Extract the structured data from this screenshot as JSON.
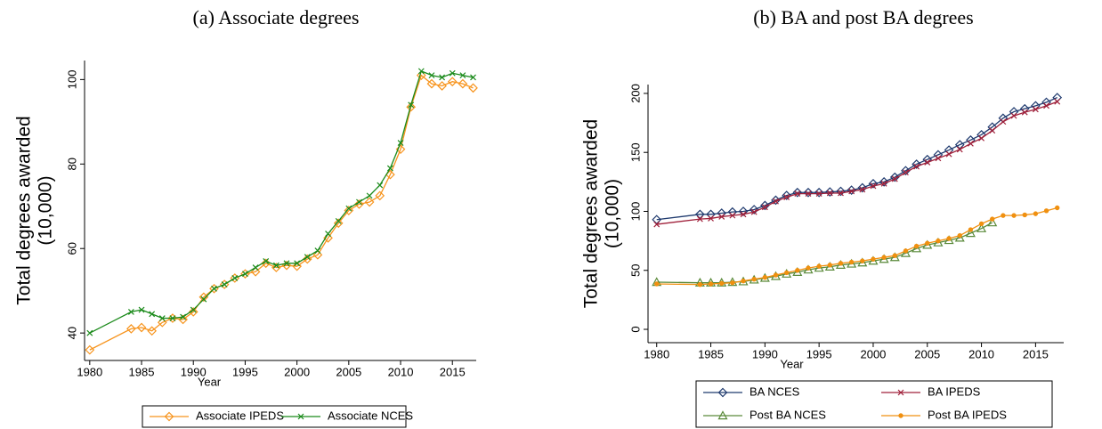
{
  "chart_data": [
    {
      "type": "line",
      "title": "(a) Associate degrees",
      "xlabel": "Year",
      "ylabel": [
        "Total degrees awarded",
        "(10,000)"
      ],
      "x": [
        1980,
        1984,
        1985,
        1986,
        1987,
        1988,
        1989,
        1990,
        1991,
        1992,
        1993,
        1994,
        1995,
        1996,
        1997,
        1998,
        1999,
        2000,
        2001,
        2002,
        2003,
        2004,
        2005,
        2006,
        2007,
        2008,
        2009,
        2010,
        2011,
        2012,
        2013,
        2014,
        2015,
        2016,
        2017
      ],
      "series": [
        {
          "name": "Associate IPEDS",
          "color": "#f7941d",
          "marker": "diamond",
          "values": [
            36,
            41,
            41.3,
            40.5,
            42.5,
            43.5,
            43.2,
            45,
            48.5,
            50.5,
            51.5,
            53,
            54,
            54.5,
            56.5,
            55.5,
            56,
            55.8,
            57.5,
            58.5,
            62.5,
            66,
            69,
            70.5,
            71,
            72.5,
            77.5,
            83.5,
            93.5,
            101,
            99,
            98.5,
            99.5,
            99,
            98
          ]
        },
        {
          "name": "Associate NCES",
          "color": "#1a8a1a",
          "marker": "x",
          "values": [
            40,
            45,
            45.5,
            44.5,
            43.5,
            43.5,
            43.8,
            45.5,
            48,
            50.5,
            51.5,
            53,
            54,
            55.5,
            57,
            56,
            56.5,
            56.5,
            58,
            59.5,
            63.5,
            66.5,
            69.5,
            71,
            72.5,
            75,
            79,
            85,
            94,
            102,
            101,
            100.5,
            101.5,
            101,
            100.5
          ]
        }
      ],
      "xlim": [
        1979.5,
        2017.3
      ],
      "xticks": [
        1980,
        1985,
        1990,
        1995,
        2000,
        2005,
        2010,
        2015
      ],
      "ylim": [
        33.5,
        104.5
      ],
      "yticks": [
        40,
        60,
        80,
        100
      ],
      "grid": false,
      "legend": "bottom",
      "legend_columns": 2
    },
    {
      "type": "line",
      "title": "(b) BA and post BA degrees",
      "xlabel": "Year",
      "ylabel": [
        "Total degrees awarded",
        "(10,000)"
      ],
      "x": [
        1980,
        1984,
        1985,
        1986,
        1987,
        1988,
        1989,
        1990,
        1991,
        1992,
        1993,
        1994,
        1995,
        1996,
        1997,
        1998,
        1999,
        2000,
        2001,
        2002,
        2003,
        2004,
        2005,
        2006,
        2007,
        2008,
        2009,
        2010,
        2011,
        2012,
        2013,
        2014,
        2015,
        2016,
        2017
      ],
      "series": [
        {
          "name": "BA NCES",
          "color": "#1f3a6e",
          "marker": "diamond",
          "values": [
            93,
            97.5,
            97.5,
            98.5,
            99.5,
            100,
            101.5,
            105,
            109.5,
            113.5,
            116,
            116,
            116,
            116.5,
            117,
            118,
            120,
            123.5,
            125,
            129,
            134.5,
            140,
            144,
            148,
            152,
            156.5,
            160.5,
            165,
            171.5,
            179,
            184.5,
            187,
            189.5,
            192.5,
            196.5
          ]
        },
        {
          "name": "BA IPEDS",
          "color": "#a0203a",
          "marker": "x",
          "values": [
            89,
            93.5,
            94,
            95.5,
            96.5,
            97.5,
            99.5,
            103.5,
            108.5,
            112,
            115,
            115,
            115,
            115.5,
            115.5,
            117,
            118.5,
            121.5,
            123.5,
            127.5,
            133,
            138,
            141.5,
            145,
            148.5,
            152.5,
            157.5,
            162,
            168.5,
            176,
            181,
            184,
            186.5,
            189.5,
            193
          ]
        },
        {
          "name": "Post BA NCES",
          "color": "#5a8a3a",
          "marker": "triangle",
          "values": [
            40,
            39.5,
            39.5,
            39.5,
            40,
            40.5,
            42,
            43.5,
            45,
            47,
            48.5,
            50.5,
            52,
            53,
            54.5,
            55.5,
            56.5,
            58,
            59.5,
            61,
            64.5,
            68.5,
            71.5,
            73.5,
            75.5,
            77.5,
            81.5,
            85.5,
            90.5,
            null,
            null,
            null,
            null,
            null,
            null
          ]
        },
        {
          "name": "Post BA IPEDS",
          "color": "#f09010",
          "marker": "dot",
          "values": [
            38.5,
            38,
            38.5,
            39,
            39.5,
            41,
            42.5,
            44,
            46,
            48,
            50,
            52,
            53.5,
            54.5,
            56,
            57,
            58,
            59.5,
            61,
            62.5,
            66.5,
            70.5,
            73,
            75,
            77,
            79.5,
            84.5,
            89.5,
            93.5,
            96.5,
            96.5,
            97,
            98,
            100.5,
            103
          ]
        }
      ],
      "xlim": [
        1979.2,
        2017.6
      ],
      "xticks": [
        1980,
        1985,
        1990,
        1995,
        2000,
        2005,
        2010,
        2015
      ],
      "ylim": [
        -11.3,
        207.5
      ],
      "yticks": [
        0,
        50,
        100,
        150,
        200
      ],
      "grid": false,
      "legend": "bottom",
      "legend_columns": 2
    }
  ]
}
